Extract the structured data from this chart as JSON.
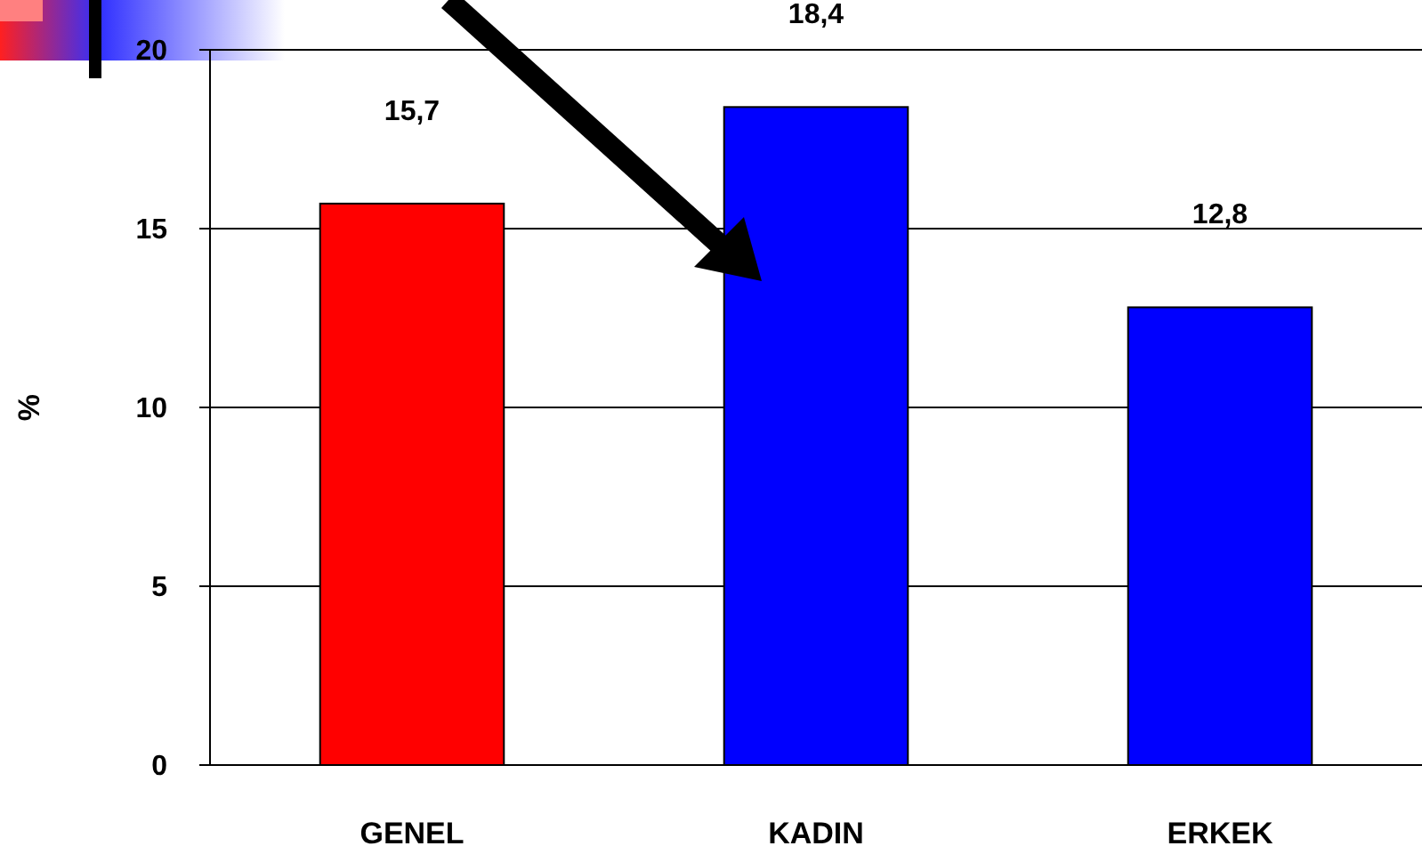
{
  "chart_data": {
    "type": "bar",
    "ylabel": "%",
    "categories": [
      "GENEL",
      "KADIN",
      "ERKEK"
    ],
    "values": [
      15.7,
      18.4,
      12.8
    ],
    "colors": [
      "#ff0000",
      "#0000ff",
      "#0000ff"
    ],
    "value_labels": [
      "15,7",
      "18,4",
      "12,8"
    ],
    "ylim": [
      0,
      20
    ],
    "yticks": [
      0,
      5,
      10,
      15,
      20
    ],
    "grid": "y"
  }
}
